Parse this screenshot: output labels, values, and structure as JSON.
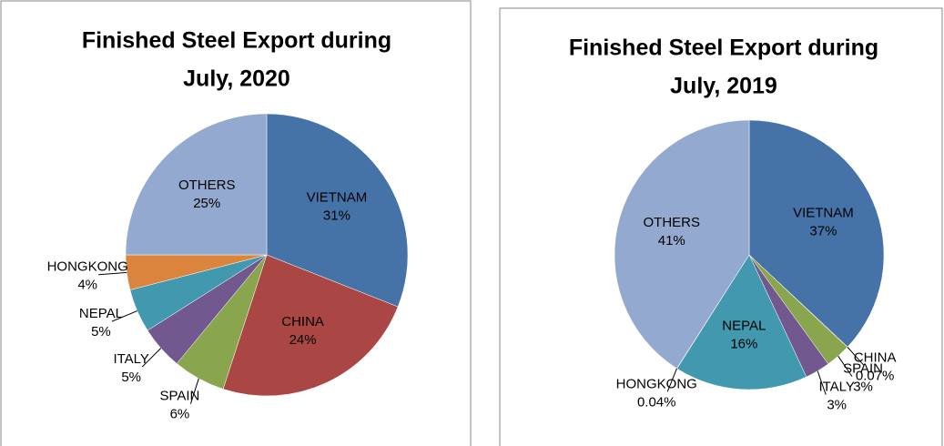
{
  "chart_data": [
    {
      "type": "pie",
      "title": [
        "Finished Steel Export during",
        "July, 2020"
      ],
      "categories": [
        "VIETNAM",
        "CHINA",
        "SPAIN",
        "ITALY",
        "NEPAL",
        "HONGKONG",
        "OTHERS"
      ],
      "values": [
        31,
        24,
        6,
        5,
        5,
        4,
        25
      ],
      "value_labels": [
        "31%",
        "24%",
        "6%",
        "5%",
        "5%",
        "4%",
        "25%"
      ],
      "colors": [
        "#4572a7",
        "#aa4643",
        "#89a54e",
        "#71588f",
        "#4198af",
        "#db843d",
        "#93a9cf"
      ]
    },
    {
      "type": "pie",
      "title": [
        "Finished Steel Export during",
        "July, 2019"
      ],
      "categories": [
        "VIETNAM",
        "CHINA",
        "SPAIN",
        "ITALY",
        "NEPAL",
        "HONGKONG",
        "OTHERS"
      ],
      "values": [
        37,
        0.07,
        3,
        3,
        16,
        0.04,
        41
      ],
      "value_labels": [
        "37%",
        "0.07%",
        "3%",
        "3%",
        "16%",
        "0.04%",
        "41%"
      ],
      "colors": [
        "#4572a7",
        "#aa4643",
        "#89a54e",
        "#71588f",
        "#4198af",
        "#db843d",
        "#93a9cf"
      ]
    }
  ]
}
